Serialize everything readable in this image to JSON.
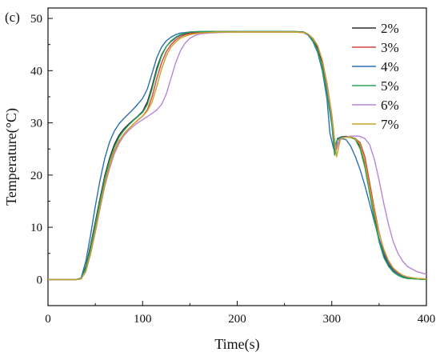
{
  "panel_label": "(c)",
  "colors": {
    "2%": "#2f2f2f",
    "3%": "#d6453d",
    "4%": "#2b6fb3",
    "5%": "#2aa35a",
    "6%": "#b886d6",
    "7%": "#c9a12a"
  },
  "chart_data": {
    "type": "line",
    "title": "",
    "xlabel": "Time(s)",
    "ylabel": "Temperature(°C)",
    "xlim": [
      0,
      400
    ],
    "ylim": [
      -5,
      52
    ],
    "xticks": [
      0,
      100,
      200,
      300,
      400
    ],
    "yticks": [
      0,
      10,
      20,
      30,
      40,
      50
    ],
    "legend_position": "top-right",
    "grid": false,
    "series": [
      {
        "name": "2%",
        "x": [
          0,
          30,
          35,
          40,
          45,
          50,
          55,
          60,
          65,
          70,
          75,
          80,
          85,
          90,
          95,
          100,
          105,
          110,
          115,
          120,
          125,
          130,
          135,
          140,
          145,
          150,
          160,
          170,
          180,
          200,
          220,
          240,
          260,
          270,
          275,
          280,
          285,
          290,
          295,
          300,
          303,
          306,
          310,
          315,
          320,
          325,
          330,
          335,
          340,
          345,
          350,
          355,
          360,
          365,
          370,
          375,
          380,
          390,
          400
        ],
        "y": [
          0,
          0,
          0.2,
          2.5,
          6.5,
          11,
          15.5,
          19.8,
          23.2,
          25.8,
          27.6,
          28.8,
          29.7,
          30.5,
          31.3,
          32.2,
          34.0,
          37.0,
          40.5,
          43.0,
          44.6,
          45.6,
          46.3,
          46.8,
          47.1,
          47.3,
          47.4,
          47.5,
          47.5,
          47.5,
          47.5,
          47.5,
          47.5,
          47.4,
          47.0,
          46.0,
          44.3,
          41.5,
          36.5,
          30.0,
          24.0,
          27.0,
          27.3,
          27.4,
          27.3,
          27.0,
          25.5,
          22.0,
          17.0,
          12.0,
          7.5,
          4.5,
          2.8,
          1.5,
          0.8,
          0.4,
          0.2,
          0.1,
          0.0
        ]
      },
      {
        "name": "3%",
        "x": [
          0,
          30,
          35,
          40,
          45,
          50,
          55,
          60,
          65,
          70,
          75,
          80,
          85,
          90,
          95,
          100,
          105,
          110,
          115,
          120,
          125,
          130,
          135,
          140,
          145,
          150,
          160,
          170,
          180,
          200,
          220,
          240,
          260,
          270,
          275,
          280,
          285,
          290,
          295,
          300,
          304,
          308,
          312,
          316,
          320,
          325,
          330,
          335,
          340,
          345,
          350,
          355,
          360,
          365,
          370,
          375,
          380,
          390,
          400
        ],
        "y": [
          0,
          0,
          0.1,
          1.8,
          5.2,
          9.5,
          14.0,
          18.4,
          21.8,
          24.6,
          26.5,
          27.8,
          28.8,
          29.7,
          30.5,
          31.3,
          32.5,
          35.0,
          38.5,
          41.5,
          43.6,
          45.0,
          45.9,
          46.5,
          46.9,
          47.1,
          47.3,
          47.4,
          47.4,
          47.4,
          47.4,
          47.4,
          47.4,
          47.3,
          47.0,
          46.2,
          44.8,
          42.0,
          37.5,
          31.5,
          24.5,
          26.8,
          27.2,
          27.3,
          27.2,
          27.0,
          26.2,
          23.5,
          18.5,
          13.5,
          9.0,
          5.5,
          3.3,
          2.0,
          1.2,
          0.7,
          0.4,
          0.2,
          0.1
        ]
      },
      {
        "name": "4%",
        "x": [
          0,
          30,
          35,
          40,
          45,
          50,
          55,
          60,
          65,
          70,
          75,
          80,
          85,
          90,
          95,
          100,
          105,
          110,
          115,
          120,
          125,
          130,
          135,
          140,
          145,
          150,
          160,
          170,
          180,
          200,
          220,
          240,
          260,
          270,
          275,
          280,
          285,
          290,
          295,
          298,
          302,
          306,
          310,
          315,
          320,
          325,
          330,
          335,
          340,
          345,
          350,
          355,
          360,
          365,
          370,
          375,
          380,
          390,
          400
        ],
        "y": [
          0,
          0,
          0.3,
          3.5,
          8.5,
          14.0,
          19.0,
          23.2,
          26.3,
          28.4,
          29.8,
          30.8,
          31.7,
          32.6,
          33.6,
          34.7,
          36.5,
          39.5,
          42.5,
          44.5,
          45.7,
          46.4,
          46.9,
          47.2,
          47.3,
          47.4,
          47.5,
          47.5,
          47.5,
          47.5,
          47.5,
          47.5,
          47.5,
          47.3,
          46.8,
          45.6,
          43.5,
          40.0,
          34.5,
          28.0,
          25.0,
          26.8,
          27.0,
          26.8,
          25.5,
          23.5,
          21.0,
          18.0,
          14.5,
          11.0,
          7.8,
          5.0,
          3.0,
          1.8,
          1.0,
          0.6,
          0.3,
          0.1,
          0.0
        ]
      },
      {
        "name": "5%",
        "x": [
          0,
          30,
          35,
          40,
          45,
          50,
          55,
          60,
          65,
          70,
          75,
          80,
          85,
          90,
          95,
          100,
          105,
          110,
          115,
          120,
          125,
          130,
          135,
          140,
          145,
          150,
          160,
          170,
          180,
          200,
          220,
          240,
          260,
          270,
          275,
          280,
          285,
          290,
          295,
          300,
          303,
          306,
          310,
          315,
          320,
          325,
          330,
          335,
          340,
          345,
          350,
          355,
          360,
          365,
          370,
          375,
          380,
          390,
          400
        ],
        "y": [
          0,
          0,
          0.2,
          2.2,
          6.0,
          10.5,
          15.0,
          19.3,
          22.7,
          25.3,
          27.2,
          28.5,
          29.5,
          30.4,
          31.2,
          32.0,
          33.5,
          36.5,
          40.0,
          42.8,
          44.6,
          45.7,
          46.4,
          46.9,
          47.2,
          47.4,
          47.5,
          47.5,
          47.5,
          47.5,
          47.5,
          47.5,
          47.5,
          47.4,
          47.0,
          45.8,
          43.8,
          40.5,
          35.5,
          29.5,
          23.8,
          26.9,
          27.2,
          27.3,
          27.2,
          26.8,
          25.0,
          21.5,
          16.5,
          11.5,
          7.2,
          4.2,
          2.5,
          1.4,
          0.8,
          0.4,
          0.2,
          0.1,
          0.0
        ]
      },
      {
        "name": "6%",
        "x": [
          0,
          30,
          35,
          40,
          45,
          50,
          55,
          60,
          65,
          70,
          75,
          80,
          85,
          90,
          95,
          100,
          105,
          110,
          115,
          120,
          125,
          130,
          135,
          140,
          145,
          150,
          155,
          160,
          170,
          180,
          200,
          220,
          240,
          260,
          270,
          275,
          280,
          285,
          290,
          295,
          300,
          304,
          308,
          312,
          318,
          324,
          330,
          335,
          340,
          345,
          350,
          355,
          360,
          365,
          370,
          375,
          380,
          390,
          400
        ],
        "y": [
          0,
          0,
          0.1,
          1.5,
          4.8,
          9.0,
          13.5,
          17.8,
          21.2,
          24.0,
          26.0,
          27.5,
          28.5,
          29.3,
          30.0,
          30.6,
          31.2,
          31.8,
          32.5,
          33.5,
          35.5,
          38.5,
          41.5,
          43.8,
          45.3,
          46.2,
          46.7,
          47.0,
          47.2,
          47.3,
          47.4,
          47.4,
          47.4,
          47.4,
          47.3,
          47.0,
          46.2,
          44.8,
          42.0,
          37.0,
          31.0,
          25.0,
          26.8,
          27.2,
          27.4,
          27.5,
          27.4,
          27.0,
          25.8,
          23.0,
          19.0,
          14.5,
          10.5,
          7.2,
          5.0,
          3.5,
          2.5,
          1.5,
          1.0
        ]
      },
      {
        "name": "7%",
        "x": [
          0,
          30,
          35,
          40,
          45,
          50,
          55,
          60,
          65,
          70,
          75,
          80,
          85,
          90,
          95,
          100,
          105,
          110,
          115,
          120,
          125,
          130,
          135,
          140,
          145,
          150,
          160,
          170,
          180,
          200,
          220,
          240,
          260,
          270,
          275,
          280,
          285,
          290,
          295,
          300,
          305,
          309,
          313,
          318,
          322,
          326,
          330,
          335,
          340,
          345,
          350,
          355,
          360,
          365,
          370,
          375,
          380,
          390,
          400
        ],
        "y": [
          0,
          0,
          0.1,
          1.6,
          5.0,
          9.2,
          13.8,
          18.2,
          21.6,
          24.4,
          26.4,
          27.8,
          28.8,
          29.7,
          30.5,
          31.3,
          32.3,
          34.0,
          37.0,
          40.3,
          42.8,
          44.5,
          45.5,
          46.2,
          46.6,
          46.9,
          47.2,
          47.3,
          47.4,
          47.4,
          47.4,
          47.4,
          47.4,
          47.3,
          47.0,
          46.2,
          44.7,
          42.0,
          37.5,
          31.5,
          23.5,
          26.8,
          27.2,
          27.3,
          27.2,
          26.8,
          25.8,
          22.5,
          17.5,
          12.8,
          8.8,
          5.8,
          3.6,
          2.2,
          1.4,
          0.8,
          0.5,
          0.2,
          0.1
        ]
      }
    ]
  }
}
